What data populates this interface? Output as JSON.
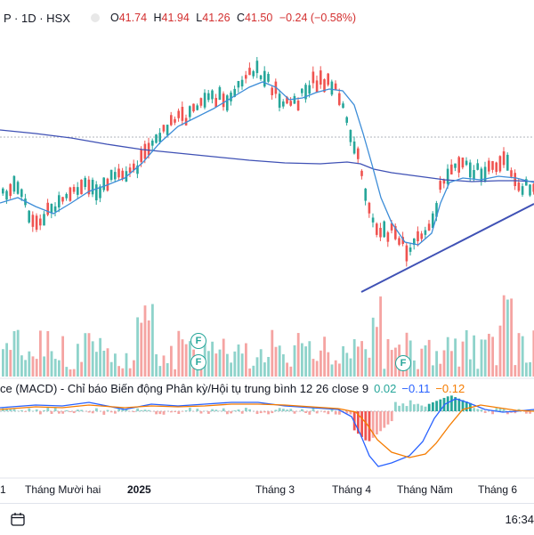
{
  "header": {
    "symbol_text": "P · 1D · HSX",
    "ohlc": {
      "o_label": "O",
      "o_value": "41.74",
      "h_label": "H",
      "h_value": "41.94",
      "l_label": "L",
      "l_value": "41.26",
      "c_label": "C",
      "c_value": "41.50",
      "change": "−0.24 (−0.58%)"
    }
  },
  "macd": {
    "title": "ce (MACD) - Chỉ báo Biến động Phân kỳ/Hội tụ trung bình 12 26 close 9",
    "val_hist": "0.02",
    "val_macd": "−0.11",
    "val_signal": "−0.12"
  },
  "events": {
    "badge_label": "F"
  },
  "x_axis": [
    "1",
    "Tháng Mười hai",
    "2025",
    "Tháng 3",
    "Tháng 4",
    "Tháng Năm",
    "Tháng 6"
  ],
  "bottom": {
    "time": "16:34"
  },
  "colors": {
    "up": "#26a69a",
    "down": "#ef5350",
    "ma": "#2962ff",
    "macd": "#2962ff",
    "signal": "#f57c00",
    "trend": "#3f51b5"
  },
  "icons": [
    "calendar-range-icon",
    "fundamentals-icon"
  ]
}
